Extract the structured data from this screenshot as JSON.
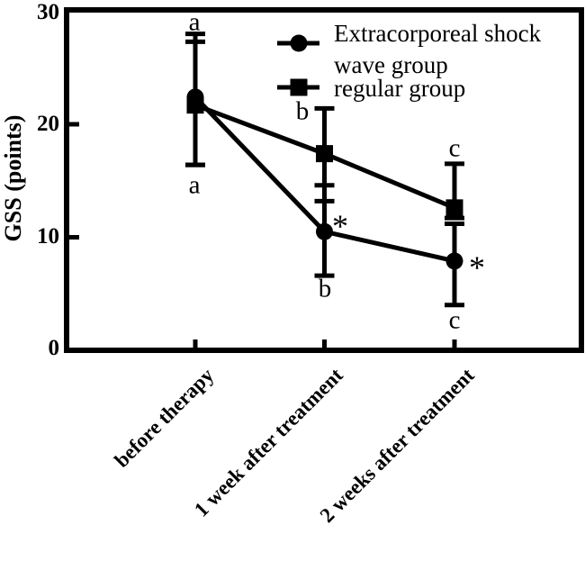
{
  "colors": {
    "foreground": "#000000",
    "background": "#ffffff"
  },
  "chart_data": {
    "type": "line",
    "title": "",
    "xlabel": "",
    "ylabel": "GSS (points)",
    "ylim": [
      0,
      30
    ],
    "grid": false,
    "legend_position": "top-right-inside",
    "categories": [
      "before therapy",
      "1 week after treatment",
      "2 weeks after treatment"
    ],
    "yticks": [
      {
        "label": "30",
        "value": 30
      },
      {
        "label": "20",
        "value": 20
      },
      {
        "label": "10",
        "value": 10
      },
      {
        "label": "0",
        "value": 0
      }
    ],
    "series": [
      {
        "name": "Extracorporeal shock wave group",
        "marker": "circle",
        "values": [
          22.4,
          10.5,
          7.9
        ],
        "error_low": [
          16.4,
          6.6,
          4.0
        ],
        "error_high": [
          28.0,
          14.6,
          11.2
        ]
      },
      {
        "name": "regular group",
        "marker": "square",
        "values": [
          21.7,
          17.4,
          12.6
        ],
        "error_low": [
          16.4,
          13.2,
          11.7
        ],
        "error_high": [
          27.3,
          21.4,
          16.5
        ]
      }
    ],
    "annotations": [
      {
        "text": "a",
        "category": "before therapy",
        "placement": "above-error-bar"
      },
      {
        "text": "a",
        "category": "before therapy",
        "placement": "below-error-bar"
      },
      {
        "text": "b",
        "category": "1 week after treatment",
        "placement": "above-error-bar"
      },
      {
        "text": "b",
        "category": "1 week after treatment",
        "placement": "below-error-bar"
      },
      {
        "text": "c",
        "category": "2 weeks after treatment",
        "placement": "above-error-bar"
      },
      {
        "text": "c",
        "category": "2 weeks after treatment",
        "placement": "below-error-bar"
      },
      {
        "text": "*",
        "category": "1 week after treatment",
        "placement": "right-of-circle-point"
      },
      {
        "text": "*",
        "category": "2 weeks after treatment",
        "placement": "right-of-circle-point"
      }
    ]
  }
}
